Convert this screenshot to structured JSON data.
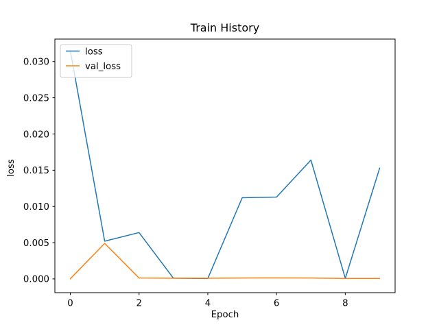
{
  "chart_data": {
    "type": "line",
    "title": "Train History",
    "xlabel": "Epoch",
    "ylabel": "loss",
    "x": [
      0,
      1,
      2,
      3,
      4,
      5,
      6,
      7,
      8,
      9
    ],
    "series": [
      {
        "name": "loss",
        "color": "#1f77b4",
        "values": [
          0.0315,
          0.0052,
          0.0064,
          0.0001,
          5e-05,
          0.0112,
          0.0113,
          0.0164,
          8e-05,
          0.0153
        ]
      },
      {
        "name": "val_loss",
        "color": "#ff7f0e",
        "values": [
          2e-05,
          0.0049,
          0.00012,
          0.0001,
          0.0001,
          0.00012,
          0.00013,
          0.00012,
          6e-05,
          7e-05
        ]
      }
    ],
    "xticks": [
      0,
      2,
      4,
      6,
      8
    ],
    "xtick_labels": [
      "0",
      "2",
      "4",
      "6",
      "8"
    ],
    "yticks": [
      0.0,
      0.005,
      0.01,
      0.015,
      0.02,
      0.025,
      0.03
    ],
    "ytick_labels": [
      "0.000",
      "0.005",
      "0.010",
      "0.015",
      "0.020",
      "0.025",
      "0.030"
    ],
    "xlim": [
      -0.45,
      9.45
    ],
    "ylim": [
      -0.0019,
      0.0331
    ],
    "grid": false,
    "legend": {
      "position": "upper-left",
      "entries": [
        "loss",
        "val_loss"
      ]
    },
    "colors": {
      "line_loss": "#1f77b4",
      "line_val_loss": "#ff7f0e",
      "axes": "#000000",
      "legend_border": "#cccccc",
      "background": "#ffffff"
    }
  }
}
